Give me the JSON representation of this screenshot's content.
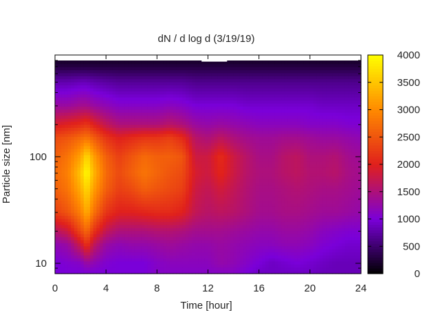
{
  "chart_data": {
    "type": "heatmap",
    "title": "dN / d log d (3/19/19)",
    "xlabel": "Time [hour]",
    "ylabel": "Particle size [nm]",
    "xlim": [
      0,
      24
    ],
    "ylim": [
      8,
      900
    ],
    "yscale": "log",
    "x_ticks": [
      0,
      4,
      8,
      12,
      16,
      20,
      24
    ],
    "y_ticks": [
      10,
      100
    ],
    "colorbar": {
      "min": 0,
      "max": 4000,
      "ticks": [
        0,
        500,
        1000,
        1500,
        2000,
        2500,
        3000,
        3500,
        4000
      ],
      "palette": "gnuplot",
      "colors": [
        "#000000",
        "#7a00d9",
        "#e0201c",
        "#ff8a00",
        "#ffff00"
      ]
    },
    "grid": false,
    "x": [
      0,
      1,
      2,
      2.5,
      3,
      4,
      5,
      6,
      7,
      8,
      9,
      10,
      11,
      12,
      13,
      14,
      15,
      16,
      17,
      18,
      19,
      20,
      21,
      22,
      23,
      24
    ],
    "y": [
      8,
      10,
      15,
      20,
      30,
      50,
      70,
      100,
      150,
      200,
      300,
      500,
      700,
      900
    ],
    "z": [
      [
        1000,
        1000,
        1000,
        1000,
        1000,
        1000,
        1000,
        1000,
        1000,
        1100,
        1100,
        1100,
        1100,
        1100,
        1100,
        1100,
        1000,
        900,
        900,
        900,
        900,
        900,
        850,
        850,
        850,
        850
      ],
      [
        1000,
        1050,
        1100,
        1300,
        1200,
        1050,
        1000,
        1000,
        1000,
        1100,
        1150,
        1150,
        1150,
        1150,
        1250,
        1200,
        1100,
        1000,
        900,
        950,
        1000,
        950,
        900,
        850,
        850,
        850
      ],
      [
        1200,
        1300,
        1800,
        2200,
        1700,
        1300,
        1200,
        1250,
        1250,
        1300,
        1350,
        1300,
        1250,
        1250,
        1300,
        1250,
        1200,
        1150,
        1150,
        1200,
        1200,
        1150,
        1050,
        1000,
        950,
        950
      ],
      [
        1600,
        1800,
        2400,
        2700,
        2200,
        1700,
        1500,
        1500,
        1500,
        1550,
        1550,
        1500,
        1400,
        1400,
        1400,
        1350,
        1300,
        1250,
        1250,
        1300,
        1300,
        1250,
        1150,
        1100,
        1050,
        1050
      ],
      [
        2300,
        2500,
        2900,
        3300,
        2800,
        2200,
        2000,
        2000,
        2050,
        2100,
        2100,
        2000,
        1700,
        1600,
        1650,
        1600,
        1500,
        1400,
        1400,
        1450,
        1450,
        1400,
        1350,
        1350,
        1300,
        1250
      ],
      [
        2600,
        2800,
        3300,
        3700,
        3200,
        2600,
        2300,
        2400,
        2600,
        2500,
        2400,
        2300,
        1800,
        1700,
        1850,
        1700,
        1550,
        1450,
        1450,
        1500,
        1550,
        1500,
        1450,
        1450,
        1400,
        1350
      ],
      [
        2700,
        2900,
        3500,
        4000,
        3400,
        2700,
        2400,
        2600,
        2800,
        2650,
        2500,
        2400,
        1900,
        1800,
        2050,
        1800,
        1600,
        1500,
        1500,
        1600,
        1650,
        1550,
        1550,
        1600,
        1450,
        1400
      ],
      [
        2600,
        2800,
        3200,
        3700,
        3200,
        2600,
        2300,
        2500,
        2700,
        2600,
        2600,
        2500,
        1800,
        1800,
        2100,
        1800,
        1600,
        1450,
        1450,
        1600,
        1650,
        1500,
        1500,
        1550,
        1400,
        1350
      ],
      [
        2400,
        2500,
        2700,
        2800,
        2600,
        2200,
        2000,
        2100,
        2200,
        2200,
        2300,
        2100,
        1600,
        1500,
        1650,
        1500,
        1400,
        1350,
        1350,
        1400,
        1400,
        1350,
        1300,
        1300,
        1250,
        1200
      ],
      [
        1900,
        2000,
        2100,
        2200,
        2000,
        1700,
        1500,
        1500,
        1500,
        1500,
        1600,
        1500,
        1300,
        1250,
        1300,
        1250,
        1200,
        1150,
        1150,
        1150,
        1150,
        1100,
        1100,
        1100,
        1050,
        1050
      ],
      [
        1300,
        1300,
        1400,
        1400,
        1300,
        1200,
        1100,
        1100,
        1100,
        1100,
        1150,
        1100,
        1000,
        1000,
        1000,
        1000,
        950,
        950,
        950,
        950,
        950,
        950,
        900,
        900,
        900,
        900
      ],
      [
        800,
        800,
        850,
        850,
        800,
        750,
        700,
        700,
        700,
        700,
        700,
        700,
        650,
        650,
        650,
        650,
        650,
        650,
        650,
        650,
        650,
        650,
        650,
        650,
        650,
        650
      ],
      [
        300,
        300,
        300,
        300,
        300,
        300,
        300,
        300,
        300,
        300,
        300,
        300,
        300,
        300,
        300,
        300,
        300,
        300,
        300,
        300,
        300,
        300,
        300,
        300,
        300,
        300
      ],
      [
        80,
        80,
        80,
        80,
        80,
        80,
        80,
        80,
        80,
        80,
        80,
        80,
        80,
        80,
        80,
        80,
        80,
        80,
        80,
        80,
        80,
        80,
        80,
        80,
        80,
        80
      ]
    ],
    "missing_top": [
      {
        "x0": 10,
        "x1": 11.5,
        "y_from": 850
      },
      {
        "x0": 11.5,
        "x1": 13.5,
        "y_from": 780
      },
      {
        "x0": 13.5,
        "x1": 14.5,
        "y_from": 850
      }
    ]
  }
}
